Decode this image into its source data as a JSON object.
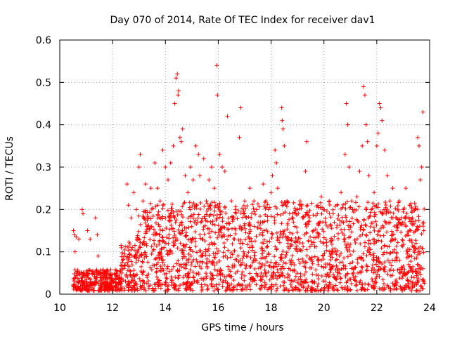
{
  "chart_data": {
    "type": "scatter",
    "title": "Day 070 of 2014, Rate Of TEC Index for receiver dav1",
    "xlabel": "GPS time / hours",
    "ylabel": "ROTI / TECUs",
    "xlim": [
      10,
      24
    ],
    "ylim": [
      0,
      0.6
    ],
    "grid": true,
    "marker": "plus",
    "x_ticks": [
      "10",
      "12",
      "14",
      "16",
      "18",
      "20",
      "22",
      "24"
    ],
    "y_ticks": [
      "0",
      "0.1",
      "0.2",
      "0.3",
      "0.4",
      "0.5",
      "0.6"
    ],
    "x_tick_values": [
      10,
      12,
      14,
      16,
      18,
      20,
      22,
      24
    ],
    "y_tick_values": [
      0,
      0.1,
      0.2,
      0.3,
      0.4,
      0.5,
      0.6
    ],
    "series": [
      {
        "name": "ROTI",
        "color": "#ff0000",
        "points": [
          [
            10.52,
            0.15
          ],
          [
            10.55,
            0.14
          ],
          [
            10.58,
            0.1
          ],
          [
            10.62,
            0.135
          ],
          [
            10.66,
            0.05
          ],
          [
            10.72,
            0.13
          ],
          [
            10.85,
            0.2
          ],
          [
            10.88,
            0.19
          ],
          [
            11.05,
            0.15
          ],
          [
            11.15,
            0.13
          ],
          [
            11.35,
            0.18
          ],
          [
            11.42,
            0.14
          ],
          [
            11.45,
            0.09
          ],
          [
            10.55,
            0.02
          ],
          [
            10.65,
            0.03
          ],
          [
            10.75,
            0.015
          ],
          [
            10.85,
            0.025
          ],
          [
            10.95,
            0.03
          ],
          [
            11.05,
            0.02
          ],
          [
            11.15,
            0.035
          ],
          [
            11.25,
            0.02
          ],
          [
            11.35,
            0.03
          ],
          [
            11.45,
            0.025
          ],
          [
            11.55,
            0.02
          ],
          [
            11.65,
            0.04
          ],
          [
            11.75,
            0.03
          ],
          [
            11.85,
            0.02
          ],
          [
            11.95,
            0.035
          ],
          [
            12.05,
            0.03
          ],
          [
            12.15,
            0.045
          ],
          [
            12.25,
            0.04
          ],
          [
            12.35,
            0.05
          ],
          [
            12.45,
            0.09
          ],
          [
            12.55,
            0.26
          ],
          [
            12.6,
            0.21
          ],
          [
            12.7,
            0.18
          ],
          [
            12.8,
            0.24
          ],
          [
            12.9,
            0.2
          ],
          [
            13.0,
            0.3
          ],
          [
            13.05,
            0.33
          ],
          [
            13.15,
            0.22
          ],
          [
            13.25,
            0.26
          ],
          [
            13.35,
            0.18
          ],
          [
            13.45,
            0.25
          ],
          [
            13.6,
            0.31
          ],
          [
            13.7,
            0.25
          ],
          [
            13.8,
            0.22
          ],
          [
            13.9,
            0.34
          ],
          [
            14.0,
            0.3
          ],
          [
            14.1,
            0.27
          ],
          [
            14.2,
            0.31
          ],
          [
            14.3,
            0.35
          ],
          [
            14.35,
            0.45
          ],
          [
            14.4,
            0.51
          ],
          [
            14.45,
            0.52
          ],
          [
            14.48,
            0.47
          ],
          [
            14.5,
            0.48
          ],
          [
            14.55,
            0.37
          ],
          [
            14.6,
            0.36
          ],
          [
            14.65,
            0.39
          ],
          [
            14.75,
            0.28
          ],
          [
            14.85,
            0.24
          ],
          [
            14.95,
            0.3
          ],
          [
            15.05,
            0.27
          ],
          [
            15.15,
            0.35
          ],
          [
            15.25,
            0.33
          ],
          [
            15.3,
            0.28
          ],
          [
            15.45,
            0.32
          ],
          [
            15.55,
            0.22
          ],
          [
            15.65,
            0.27
          ],
          [
            15.75,
            0.3
          ],
          [
            15.85,
            0.25
          ],
          [
            15.95,
            0.54
          ],
          [
            15.97,
            0.47
          ],
          [
            16.05,
            0.33
          ],
          [
            16.15,
            0.3
          ],
          [
            16.25,
            0.29
          ],
          [
            16.35,
            0.42
          ],
          [
            16.5,
            0.22
          ],
          [
            16.65,
            0.2
          ],
          [
            16.8,
            0.37
          ],
          [
            16.85,
            0.44
          ],
          [
            17.0,
            0.22
          ],
          [
            17.2,
            0.25
          ],
          [
            17.35,
            0.22
          ],
          [
            17.45,
            0.2
          ],
          [
            17.6,
            0.17
          ],
          [
            17.7,
            0.26
          ],
          [
            17.8,
            0.22
          ],
          [
            17.9,
            0.2
          ],
          [
            18.0,
            0.24
          ],
          [
            18.05,
            0.28
          ],
          [
            18.15,
            0.34
          ],
          [
            18.2,
            0.31
          ],
          [
            18.25,
            0.25
          ],
          [
            18.4,
            0.44
          ],
          [
            18.42,
            0.41
          ],
          [
            18.45,
            0.39
          ],
          [
            18.5,
            0.35
          ],
          [
            18.6,
            0.22
          ],
          [
            18.7,
            0.19
          ],
          [
            18.8,
            0.18
          ],
          [
            18.9,
            0.16
          ],
          [
            19.0,
            0.2
          ],
          [
            19.1,
            0.22
          ],
          [
            19.2,
            0.18
          ],
          [
            19.3,
            0.29
          ],
          [
            19.35,
            0.36
          ],
          [
            19.45,
            0.18
          ],
          [
            19.6,
            0.15
          ],
          [
            19.75,
            0.19
          ],
          [
            19.9,
            0.23
          ],
          [
            20.05,
            0.17
          ],
          [
            20.2,
            0.22
          ],
          [
            20.35,
            0.19
          ],
          [
            20.5,
            0.21
          ],
          [
            20.65,
            0.24
          ],
          [
            20.8,
            0.33
          ],
          [
            20.85,
            0.45
          ],
          [
            20.9,
            0.4
          ],
          [
            20.95,
            0.3
          ],
          [
            21.05,
            0.22
          ],
          [
            21.15,
            0.2
          ],
          [
            21.25,
            0.23
          ],
          [
            21.35,
            0.29
          ],
          [
            21.45,
            0.35
          ],
          [
            21.5,
            0.49
          ],
          [
            21.55,
            0.47
          ],
          [
            21.6,
            0.4
          ],
          [
            21.65,
            0.36
          ],
          [
            21.7,
            0.28
          ],
          [
            21.8,
            0.2
          ],
          [
            21.9,
            0.24
          ],
          [
            22.0,
            0.35
          ],
          [
            22.05,
            0.38
          ],
          [
            22.1,
            0.45
          ],
          [
            22.15,
            0.44
          ],
          [
            22.2,
            0.41
          ],
          [
            22.3,
            0.34
          ],
          [
            22.4,
            0.28
          ],
          [
            22.5,
            0.22
          ],
          [
            22.6,
            0.25
          ],
          [
            22.75,
            0.18
          ],
          [
            22.85,
            0.22
          ],
          [
            23.0,
            0.2
          ],
          [
            23.1,
            0.25
          ],
          [
            23.25,
            0.21
          ],
          [
            23.35,
            0.18
          ],
          [
            23.45,
            0.2
          ],
          [
            23.55,
            0.37
          ],
          [
            23.6,
            0.35
          ],
          [
            23.65,
            0.27
          ],
          [
            23.7,
            0.3
          ],
          [
            23.75,
            0.43
          ],
          [
            23.78,
            0.15
          ]
        ]
      }
    ],
    "dense_band": [
      {
        "x0": 10.5,
        "x1": 12.3,
        "ymax": 0.05
      },
      {
        "x0": 12.3,
        "x1": 12.9,
        "ymax": 0.12
      },
      {
        "x0": 12.9,
        "x1": 23.8,
        "ymax": 0.21
      }
    ]
  }
}
